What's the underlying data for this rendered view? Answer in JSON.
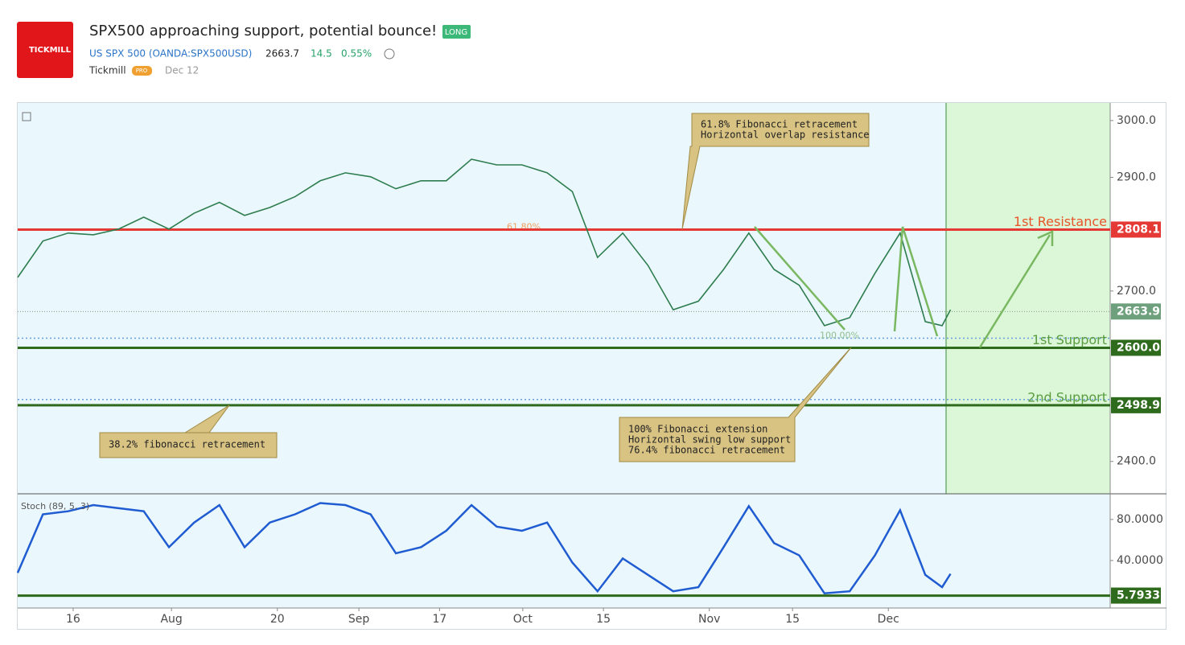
{
  "header": {
    "logo": "TICKMILL",
    "title": "SPX500 approaching support, potential bounce!",
    "badge": "LONG",
    "symbol": "US SPX 500 (OANDA:SPX500USD)",
    "price": "2663.7",
    "change": "14.5",
    "change_pct": "0.55%",
    "author": "Tickmill",
    "author_badge": "PRO",
    "date": "Dec 12"
  },
  "chart_data": [
    {
      "type": "line",
      "x": [
        0,
        3,
        6,
        9,
        12,
        15,
        18,
        21,
        24,
        27,
        30,
        33,
        36,
        39,
        42,
        45,
        48,
        51,
        54,
        57,
        60,
        63,
        66,
        69,
        72,
        75,
        78,
        81,
        84,
        87,
        90,
        93,
        96,
        99,
        102,
        105,
        108,
        110,
        111
      ],
      "xlim": [
        0,
        130
      ],
      "xticks": [
        {
          "value": 6.6,
          "label": "16"
        },
        {
          "value": 18.3,
          "label": "Aug"
        },
        {
          "value": 30.9,
          "label": "20"
        },
        {
          "value": 40.6,
          "label": "Sep"
        },
        {
          "value": 50.2,
          "label": "17"
        },
        {
          "value": 60.1,
          "label": "Oct"
        },
        {
          "value": 69.7,
          "label": "15"
        },
        {
          "value": 82.3,
          "label": "Nov"
        },
        {
          "value": 92.2,
          "label": "15"
        },
        {
          "value": 103.6,
          "label": "Dec"
        }
      ],
      "series": [
        {
          "color": "#2e7d4f",
          "values": [
            2724,
            2788,
            2802,
            2799,
            2809,
            2830,
            2809,
            2837,
            2856,
            2833,
            2847,
            2866,
            2894,
            2908,
            2901,
            2880,
            2894,
            2894,
            2932,
            2922,
            2922,
            2908,
            2875,
            2759,
            2802,
            2745,
            2667,
            2682,
            2738,
            2802,
            2738,
            2710,
            2639,
            2653,
            2731,
            2802,
            2646,
            2639,
            2667
          ]
        }
      ],
      "ylim": [
        2343,
        3031
      ],
      "yticks": [
        {
          "value": 3000,
          "label": "3000.0"
        },
        {
          "value": 2900,
          "label": "2900.0"
        },
        {
          "value": 2700,
          "label": "2700.0"
        },
        {
          "value": 2400,
          "label": "2400.0"
        }
      ],
      "levels": [
        {
          "value": 2808.1,
          "label": "2808.1",
          "text": "1st Resistance",
          "color": "#e53935"
        },
        {
          "value": 2663.9,
          "label": "2663.9",
          "color": "#6fa07e"
        },
        {
          "value": 2600,
          "label": "2600.0",
          "text": "1st Support",
          "color": "#2e6b1c"
        },
        {
          "value": 2498.9,
          "label": "2498.9",
          "text": "2nd Support",
          "color": "#2e6b1c"
        }
      ],
      "fib_levels": [
        {
          "value": 2808.1,
          "label": "61.80%"
        },
        {
          "value": 2617,
          "label": "100.00%"
        },
        {
          "value": 2509
        }
      ],
      "annotations": [
        {
          "lines": [
            "61.8% Fibonacci retracement",
            "Horizontal overlap resistance"
          ]
        },
        {
          "lines": [
            "38.2% fibonacci retracement"
          ]
        },
        {
          "lines": [
            "100% Fibonacci extension",
            "Horizontal swing low support",
            "76.4% fibonacci retracement"
          ]
        }
      ]
    },
    {
      "type": "line",
      "title": "Stoch (89, 5, 3)",
      "series": [
        {
          "color": "#1f5bd1",
          "values": [
            28,
            85,
            88,
            94,
            91,
            88,
            53,
            77,
            94,
            53,
            77,
            85,
            96,
            94,
            85,
            47,
            53,
            69,
            94,
            73,
            69,
            77,
            38,
            10,
            42,
            26,
            10,
            14,
            53,
            93,
            57,
            45,
            8,
            10,
            45,
            89,
            26,
            14,
            27
          ]
        }
      ],
      "ylim": [
        -6.3,
        105
      ],
      "yticks": [
        {
          "value": 80,
          "label": "80.0000"
        },
        {
          "value": 40,
          "label": "40.0000"
        }
      ],
      "levels": [
        {
          "value": 5.7933,
          "label": "5.7933",
          "color": "#2e6b1c"
        }
      ]
    }
  ]
}
